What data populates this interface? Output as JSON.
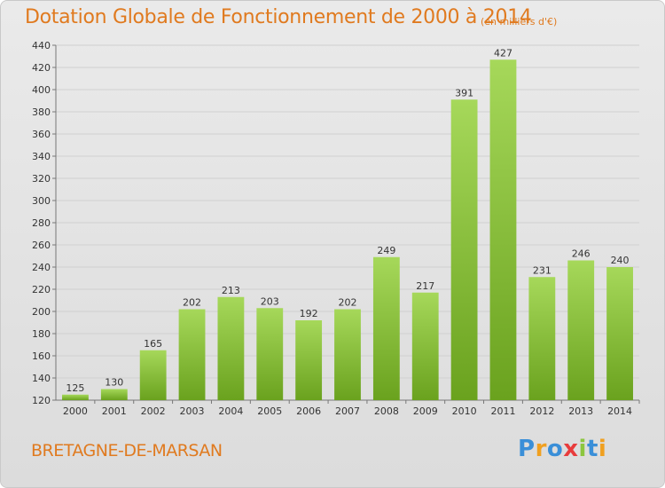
{
  "title": "Dotation Globale de Fonctionnement de 2000 à 2014",
  "subtitle": "(en milliers d'€)",
  "commune": "BRETAGNE-DE-MARSAN",
  "brand": {
    "text": "Proxiti",
    "letters": [
      {
        "ch": "P",
        "color": "#3a8fd8"
      },
      {
        "ch": "r",
        "color": "#f0a020"
      },
      {
        "ch": "o",
        "color": "#3a8fd8"
      },
      {
        "ch": "x",
        "color": "#e83c3c"
      },
      {
        "ch": "i",
        "color": "#8cc63f"
      },
      {
        "ch": "t",
        "color": "#3a8fd8"
      },
      {
        "ch": "i",
        "color": "#f0a020"
      }
    ]
  },
  "colors": {
    "bar_light": "#a6d85a",
    "bar_dark": "#6aa21e",
    "accent": "#e07a1f"
  },
  "chart_data": {
    "type": "bar",
    "categories": [
      "2000",
      "2001",
      "2002",
      "2003",
      "2004",
      "2005",
      "2006",
      "2007",
      "2008",
      "2009",
      "2010",
      "2011",
      "2012",
      "2013",
      "2014"
    ],
    "values": [
      125,
      130,
      165,
      202,
      213,
      203,
      192,
      202,
      249,
      217,
      391,
      427,
      231,
      246,
      240
    ],
    "ylim": [
      120,
      440
    ],
    "yticks": [
      120,
      140,
      160,
      180,
      200,
      220,
      240,
      260,
      280,
      300,
      320,
      340,
      360,
      380,
      400,
      420,
      440
    ],
    "grid": true,
    "xlabel": "",
    "ylabel": ""
  }
}
